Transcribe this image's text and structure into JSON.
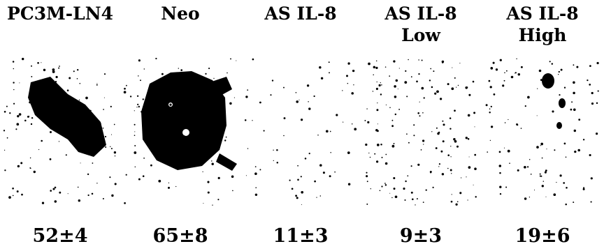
{
  "panels": [
    {
      "label": "PC3M-LN4",
      "count": "52±4"
    },
    {
      "label": "Neo",
      "count": "65±8"
    },
    {
      "label": "AS IL-8",
      "count": "11±3"
    },
    {
      "label": "AS IL-8\nLow",
      "count": "9±3"
    },
    {
      "label": "AS IL-8\nHigh",
      "count": "19±6"
    }
  ],
  "colors": {
    "stain": "#000000",
    "background": "#ffffff"
  }
}
